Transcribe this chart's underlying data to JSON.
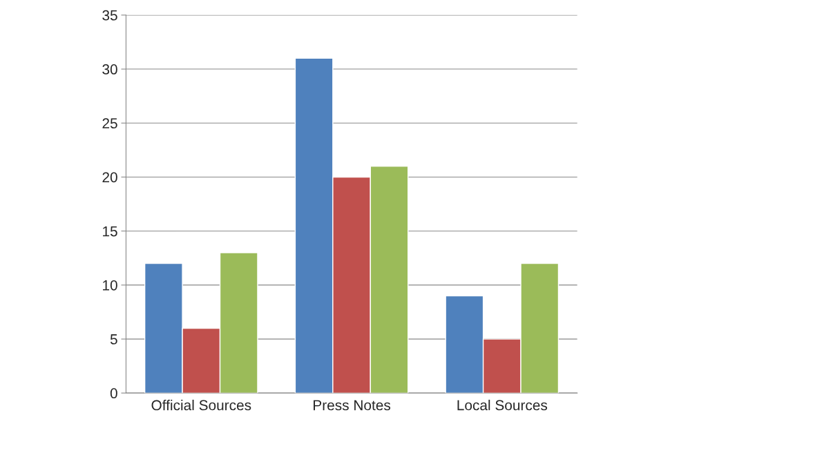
{
  "chart_data": {
    "type": "bar",
    "categories": [
      "Official Sources",
      "Press Notes",
      "Local Sources"
    ],
    "series": [
      {
        "color": "#4f81bd",
        "values": [
          12,
          31,
          9
        ]
      },
      {
        "color": "#c0504d",
        "values": [
          6,
          20,
          5
        ]
      },
      {
        "color": "#9bbb59",
        "values": [
          13,
          21,
          12
        ]
      }
    ],
    "ylim": [
      0,
      35
    ],
    "yticks": [
      0,
      5,
      10,
      15,
      20,
      25,
      30,
      35
    ],
    "grid": "y"
  }
}
